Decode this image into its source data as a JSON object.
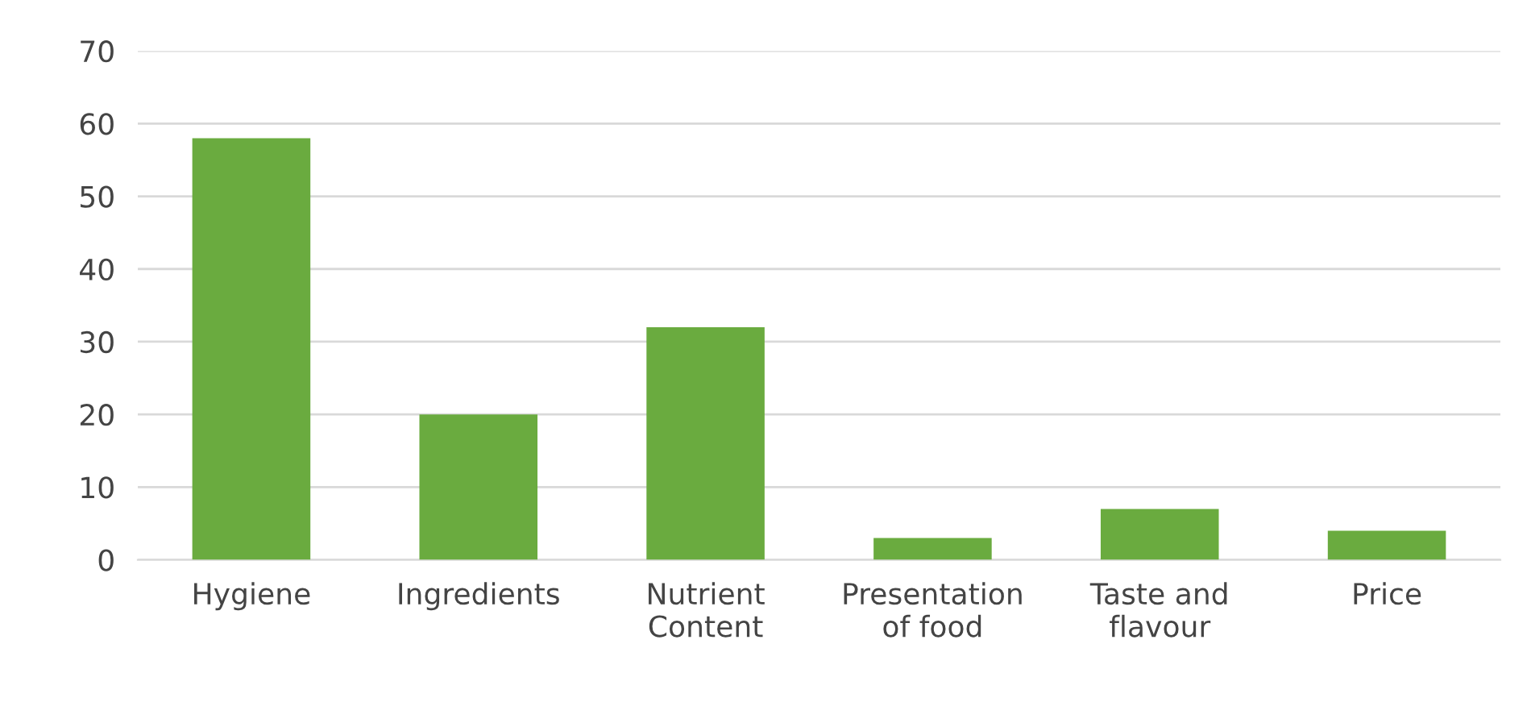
{
  "chart_data": {
    "type": "bar",
    "categories": [
      "Hygiene",
      "Ingredients",
      "Nutrient\nContent",
      "Presentation\nof food",
      "Taste and\nflavour",
      "Price"
    ],
    "values": [
      58,
      20,
      32,
      3,
      7,
      4
    ],
    "color": "#6aab3f",
    "ylim": [
      0,
      70
    ],
    "yticks": [
      0,
      10,
      20,
      30,
      40,
      50,
      60,
      70
    ],
    "grid": "y",
    "legend": false
  }
}
